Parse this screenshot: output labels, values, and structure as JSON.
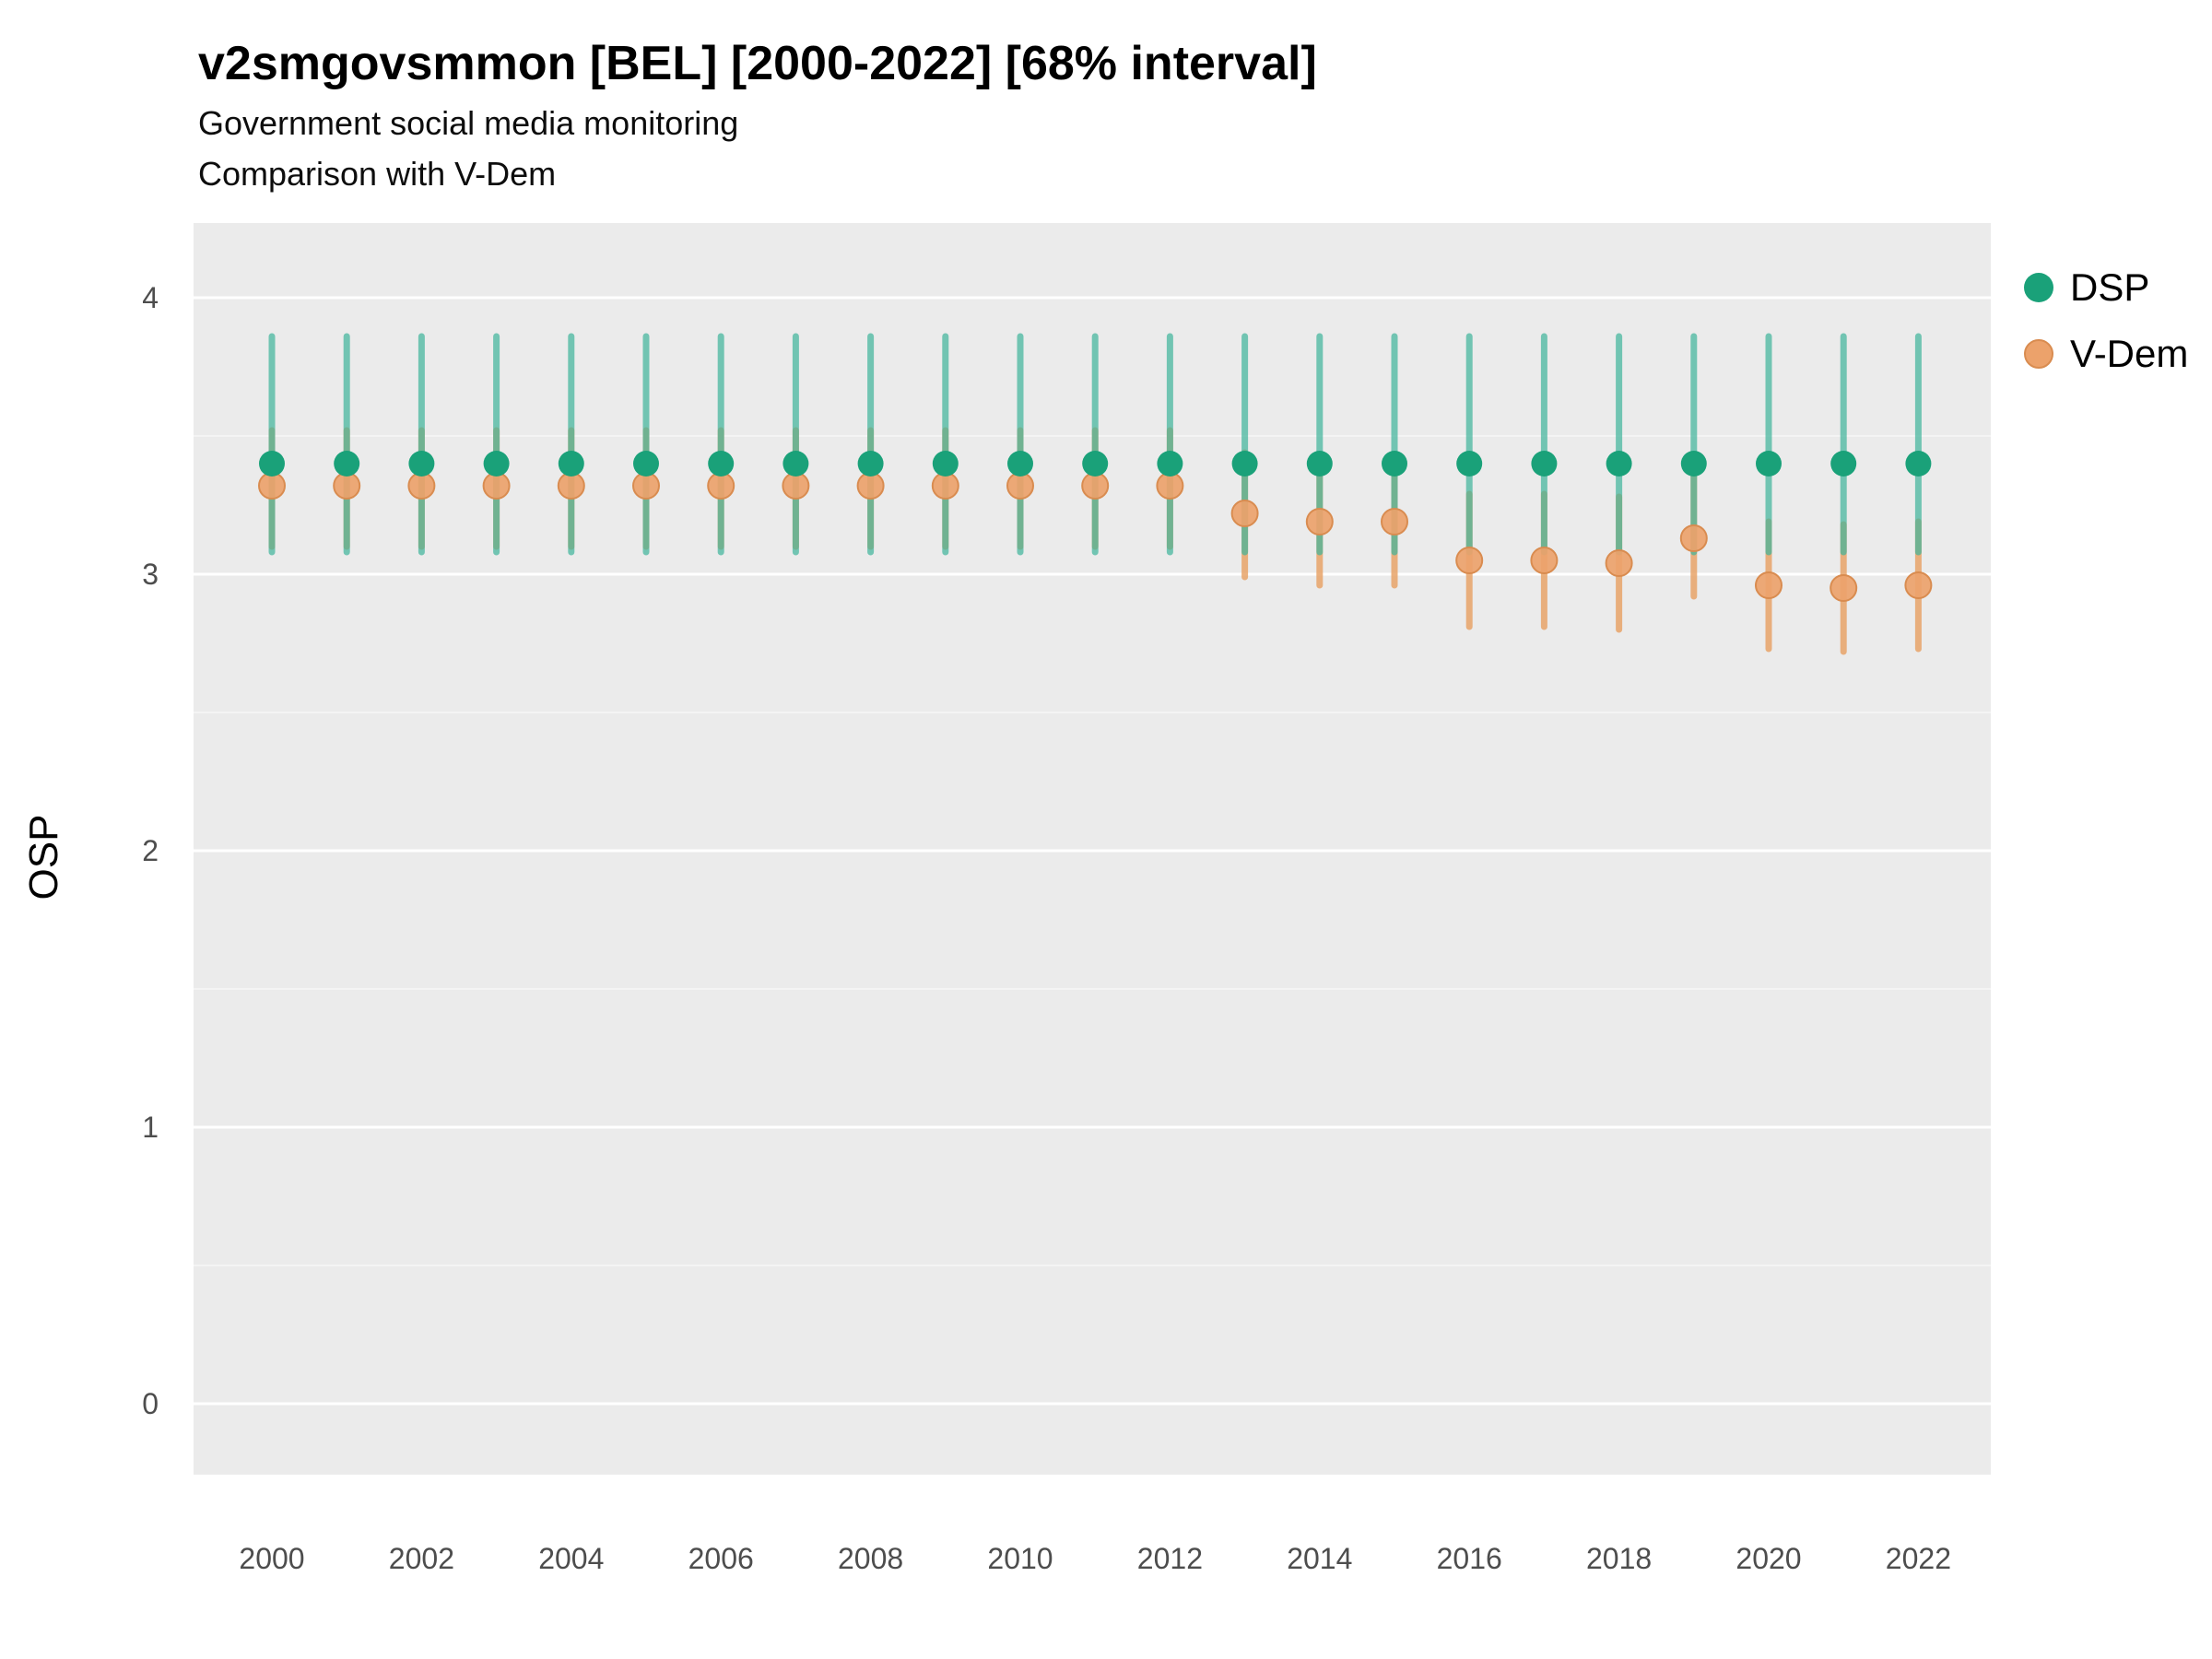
{
  "chart_data": {
    "type": "scatter",
    "title": "v2smgovsmmon [BEL] [2000-2022] [68% interval]",
    "subtitle1": "Government social media monitoring",
    "subtitle2": "Comparison with V-Dem",
    "xlabel": "",
    "ylabel": "OSP",
    "interval": "68% interval",
    "ylim": [
      -0.26,
      4.26
    ],
    "yticks": [
      0,
      1,
      2,
      3,
      4
    ],
    "xticks": [
      2000,
      2002,
      2004,
      2006,
      2008,
      2010,
      2012,
      2014,
      2016,
      2018,
      2020,
      2022
    ],
    "legend_position": "right",
    "grid": "on",
    "colors": {
      "panel_bg": "#EBEBEB",
      "grid": "#FFFFFF",
      "background": "#FFFFFF",
      "tick_text": "#4D4D4D"
    },
    "x": [
      2000,
      2001,
      2002,
      2003,
      2004,
      2005,
      2006,
      2007,
      2008,
      2009,
      2010,
      2011,
      2012,
      2013,
      2014,
      2015,
      2016,
      2017,
      2018,
      2019,
      2020,
      2021,
      2022
    ],
    "series": [
      {
        "name": "DSP",
        "point_color": "#1AA179",
        "bar_color": "#3DB39A",
        "bar_opacity": 0.7,
        "values": [
          3.4,
          3.4,
          3.4,
          3.4,
          3.4,
          3.4,
          3.4,
          3.4,
          3.4,
          3.4,
          3.4,
          3.4,
          3.4,
          3.4,
          3.4,
          3.4,
          3.4,
          3.4,
          3.4,
          3.4,
          3.4,
          3.4,
          3.4
        ],
        "lo": [
          3.08,
          3.08,
          3.08,
          3.08,
          3.08,
          3.08,
          3.08,
          3.08,
          3.08,
          3.08,
          3.08,
          3.08,
          3.08,
          3.08,
          3.08,
          3.08,
          3.08,
          3.08,
          3.08,
          3.08,
          3.08,
          3.08,
          3.08
        ],
        "hi": [
          3.86,
          3.86,
          3.86,
          3.86,
          3.86,
          3.86,
          3.86,
          3.86,
          3.86,
          3.86,
          3.86,
          3.86,
          3.86,
          3.86,
          3.86,
          3.86,
          3.86,
          3.86,
          3.86,
          3.86,
          3.86,
          3.86,
          3.86
        ]
      },
      {
        "name": "V-Dem",
        "point_color": "#ECA26B",
        "point_stroke": "#D98C50",
        "bar_color": "#E8A368",
        "bar_opacity": 0.85,
        "values": [
          3.32,
          3.32,
          3.32,
          3.32,
          3.32,
          3.32,
          3.32,
          3.32,
          3.32,
          3.32,
          3.32,
          3.32,
          3.32,
          3.22,
          3.19,
          3.19,
          3.05,
          3.05,
          3.04,
          3.13,
          2.96,
          2.95,
          2.96
        ],
        "lo": [
          3.1,
          3.1,
          3.1,
          3.1,
          3.1,
          3.1,
          3.1,
          3.1,
          3.1,
          3.1,
          3.1,
          3.1,
          3.1,
          2.99,
          2.96,
          2.96,
          2.81,
          2.81,
          2.8,
          2.92,
          2.73,
          2.72,
          2.73
        ],
        "hi": [
          3.52,
          3.52,
          3.52,
          3.52,
          3.52,
          3.52,
          3.52,
          3.52,
          3.52,
          3.52,
          3.52,
          3.52,
          3.52,
          3.44,
          3.41,
          3.41,
          3.29,
          3.29,
          3.28,
          3.36,
          3.19,
          3.18,
          3.19
        ]
      }
    ]
  }
}
